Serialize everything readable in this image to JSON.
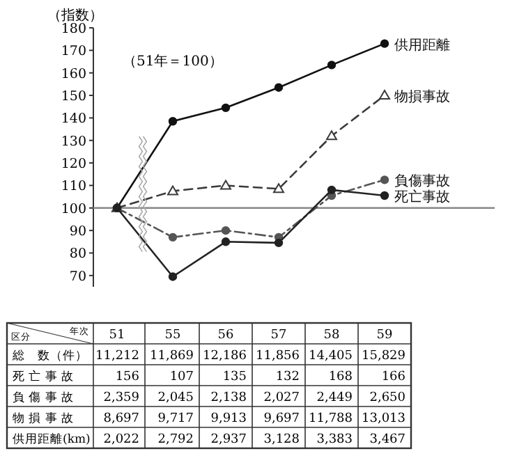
{
  "chart_data": {
    "type": "line",
    "ylabel": "（指数）",
    "categories": [
      "51",
      "55",
      "56",
      "57",
      "58",
      "59"
    ],
    "ylim": [
      65,
      180
    ],
    "yticks": [
      70,
      80,
      90,
      100,
      110,
      120,
      130,
      140,
      150,
      160,
      170,
      180
    ],
    "grid": false,
    "legend": "right",
    "ref_lines": [
      {
        "axis": "y",
        "value": 100,
        "color": "#888888"
      }
    ],
    "annotations": [
      "（51年＝100）",
      "区分",
      "年次",
      "総　数（件）",
      "死 亡 事 故",
      "負 傷 事 故",
      "物 損 事 故",
      "供用距離(km)",
      "11,212",
      "11,869",
      "12,186",
      "11,856",
      "14,405",
      "15,829",
      "156",
      "107",
      "135",
      "132",
      "168",
      "166",
      "2,359",
      "2,045",
      "2,138",
      "2,027",
      "2,449",
      "2,650",
      "8,697",
      "9,717",
      "9,913",
      "9,697",
      "11,788",
      "13,013",
      "2,022",
      "2,792",
      "2,937",
      "3,128",
      "3,383",
      "3,467"
    ],
    "series": [
      {
        "name": "死亡事故",
        "color": "#222222",
        "marker": "circle",
        "line_style": "solid",
        "values": [
          100,
          69.5,
          85,
          84.5,
          108,
          105.5
        ]
      },
      {
        "name": "負傷事故",
        "color": "#555555",
        "marker": "circle",
        "line_style": "dotted",
        "values": [
          100,
          87,
          90,
          87,
          105.5,
          112.5
        ]
      },
      {
        "name": "物損事故",
        "color": "#3a3a3a",
        "marker": "triangle",
        "line_style": "dashed",
        "values": [
          100,
          107.5,
          110,
          108.5,
          132,
          150
        ]
      },
      {
        "name": "供用距離",
        "color": "#111111",
        "marker": "circle",
        "line_style": "solid",
        "values": [
          100,
          138.5,
          144.5,
          153.5,
          163.5,
          173
        ]
      }
    ]
  }
}
